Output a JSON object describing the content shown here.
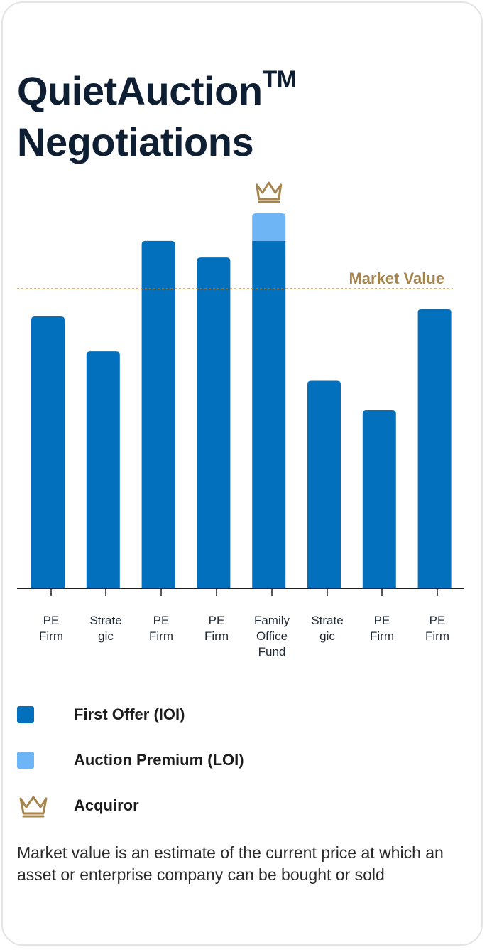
{
  "title": {
    "line1": "QuietAuction",
    "tm": "TM",
    "line2": "Negotiations"
  },
  "colors": {
    "first_offer": "#0270bc",
    "auction_premium": "#6db5f4",
    "market_value": "#a6844e",
    "axis": "#1f1f1f",
    "crown": "#a6844e"
  },
  "chart_data": {
    "type": "bar",
    "stacked": true,
    "categories": [
      [
        "PE",
        "Firm"
      ],
      [
        "Strate",
        "gic"
      ],
      [
        "PE",
        "Firm"
      ],
      [
        "PE",
        "Firm"
      ],
      [
        "Family",
        "Office",
        "Fund"
      ],
      [
        "Strate",
        "gic"
      ],
      [
        "PE",
        "Firm"
      ],
      [
        "PE",
        "Firm"
      ]
    ],
    "series": [
      {
        "name": "First Offer (IOI)",
        "values": [
          74,
          64.5,
          94.5,
          90,
          94.5,
          56.5,
          48.5,
          76
        ]
      },
      {
        "name": "Auction Premium (LOI)",
        "values": [
          0,
          0,
          0,
          0,
          7.5,
          0,
          0,
          0
        ]
      }
    ],
    "acquiror_index": 4,
    "reference_line": {
      "label": "Market Value",
      "value": 81.5,
      "style": "dotted"
    },
    "ylim": [
      0,
      102
    ],
    "grid": false,
    "y_axis_visible": false,
    "legend_position": "bottom"
  },
  "legend": {
    "items": [
      {
        "label": "First Offer (IOI)",
        "swatch": "first_offer"
      },
      {
        "label": "Auction Premium (LOI)",
        "swatch": "auction_premium"
      },
      {
        "label": "Acquiror",
        "icon": "crown-icon"
      }
    ]
  },
  "footnote": "Market value is an estimate of the current price at which an asset or enterprise company can be bought or sold"
}
